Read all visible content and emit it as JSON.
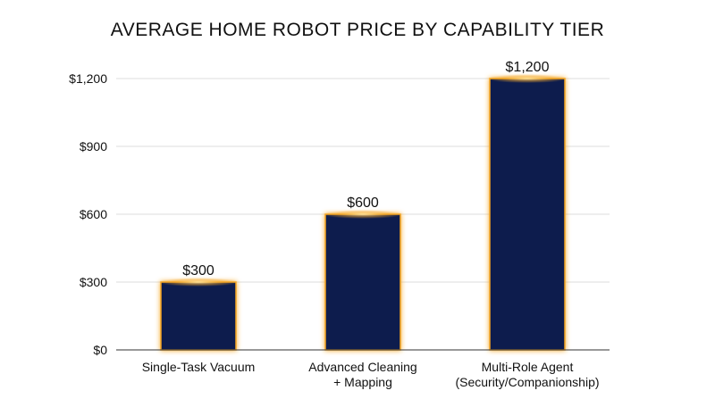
{
  "chart_data": {
    "type": "bar",
    "title": "AVERAGE HOME ROBOT PRICE BY CAPABILITY TIER",
    "xlabel": "",
    "ylabel": "",
    "categories": [
      [
        "Single-Task Vacuum"
      ],
      [
        "Advanced Cleaning",
        "+ Mapping"
      ],
      [
        "Multi-Role Agent",
        "(Security/Companionship)"
      ]
    ],
    "values": [
      300,
      600,
      1200
    ],
    "value_labels": [
      "$300",
      "$600",
      "$1,200"
    ],
    "ylim": [
      0,
      1200
    ],
    "yticks": [
      0,
      300,
      600,
      900,
      1200
    ],
    "ytick_labels": [
      "$0",
      "$300",
      "$600",
      "$900",
      "$1,200"
    ],
    "grid": true,
    "legend": "none",
    "colors": {
      "bar_fill": "#0f1c4d",
      "bar_glow": "#f5a623",
      "grid": "#dddddd",
      "axis": "#333333",
      "text": "#111111"
    }
  }
}
